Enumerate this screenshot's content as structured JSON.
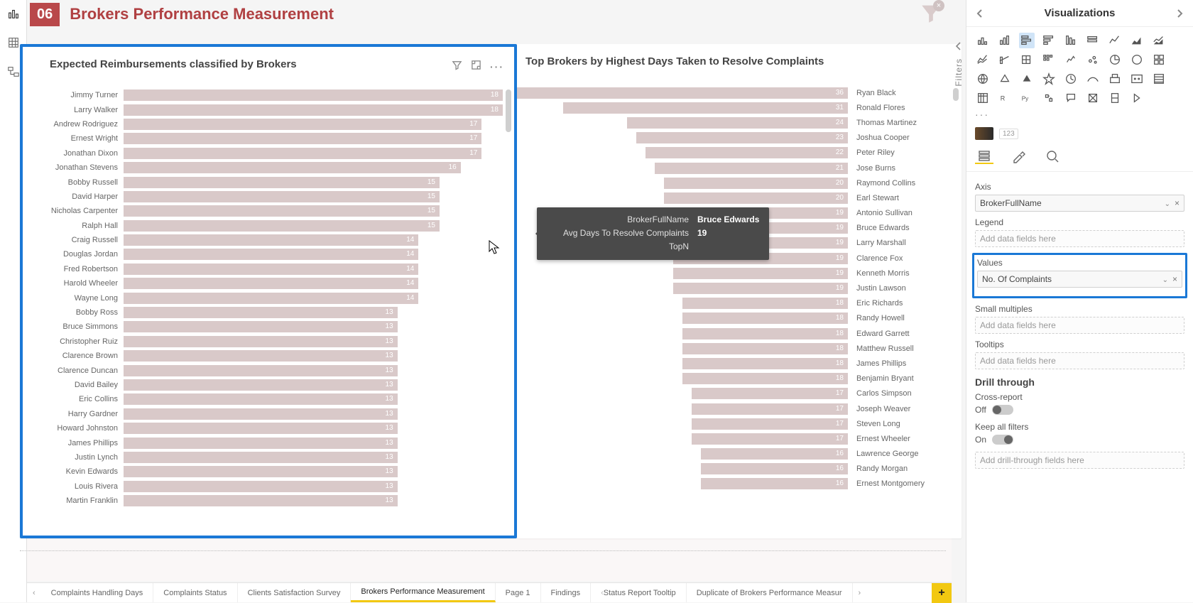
{
  "page": {
    "num": "06",
    "title": "Brokers Performance Measurement"
  },
  "leftChart": {
    "title": "Expected Reimbursements classified by Brokers",
    "maxVal": 18,
    "bars": [
      {
        "label": "Jimmy Turner",
        "val": 18
      },
      {
        "label": "Larry Walker",
        "val": 18
      },
      {
        "label": "Andrew Rodriguez",
        "val": 17
      },
      {
        "label": "Ernest Wright",
        "val": 17
      },
      {
        "label": "Jonathan Dixon",
        "val": 17
      },
      {
        "label": "Jonathan Stevens",
        "val": 16
      },
      {
        "label": "Bobby Russell",
        "val": 15
      },
      {
        "label": "David Harper",
        "val": 15
      },
      {
        "label": "Nicholas Carpenter",
        "val": 15
      },
      {
        "label": "Ralph Hall",
        "val": 15
      },
      {
        "label": "Craig Russell",
        "val": 14
      },
      {
        "label": "Douglas Jordan",
        "val": 14
      },
      {
        "label": "Fred Robertson",
        "val": 14
      },
      {
        "label": "Harold Wheeler",
        "val": 14
      },
      {
        "label": "Wayne Long",
        "val": 14
      },
      {
        "label": "Bobby Ross",
        "val": 13
      },
      {
        "label": "Bruce Simmons",
        "val": 13
      },
      {
        "label": "Christopher Ruiz",
        "val": 13
      },
      {
        "label": "Clarence Brown",
        "val": 13
      },
      {
        "label": "Clarence Duncan",
        "val": 13
      },
      {
        "label": "David Bailey",
        "val": 13
      },
      {
        "label": "Eric Collins",
        "val": 13
      },
      {
        "label": "Harry Gardner",
        "val": 13
      },
      {
        "label": "Howard Johnston",
        "val": 13
      },
      {
        "label": "James Phillips",
        "val": 13
      },
      {
        "label": "Justin Lynch",
        "val": 13
      },
      {
        "label": "Kevin Edwards",
        "val": 13
      },
      {
        "label": "Louis Rivera",
        "val": 13
      },
      {
        "label": "Martin Franklin",
        "val": 13
      }
    ]
  },
  "rightChart": {
    "title": "Top Brokers by Highest Days Taken to Resolve Complaints",
    "maxVal": 36,
    "bars": [
      {
        "label": "Ryan Black",
        "val": 36
      },
      {
        "label": "Ronald Flores",
        "val": 31
      },
      {
        "label": "Thomas Martinez",
        "val": 24
      },
      {
        "label": "Joshua Cooper",
        "val": 23
      },
      {
        "label": "Peter Riley",
        "val": 22
      },
      {
        "label": "Jose Burns",
        "val": 21
      },
      {
        "label": "Raymond Collins",
        "val": 20
      },
      {
        "label": "Earl Stewart",
        "val": 20
      },
      {
        "label": "Antonio Sullivan",
        "val": 19
      },
      {
        "label": "Bruce Edwards",
        "val": 19
      },
      {
        "label": "Larry Marshall",
        "val": 19
      },
      {
        "label": "Clarence Fox",
        "val": 19
      },
      {
        "label": "Kenneth Morris",
        "val": 19
      },
      {
        "label": "Justin Lawson",
        "val": 19
      },
      {
        "label": "Eric Richards",
        "val": 18
      },
      {
        "label": "Randy Howell",
        "val": 18
      },
      {
        "label": "Edward Garrett",
        "val": 18
      },
      {
        "label": "Matthew Russell",
        "val": 18
      },
      {
        "label": "James Phillips",
        "val": 18
      },
      {
        "label": "Benjamin Bryant",
        "val": 18
      },
      {
        "label": "Carlos Simpson",
        "val": 17
      },
      {
        "label": "Joseph Weaver",
        "val": 17
      },
      {
        "label": "Steven Long",
        "val": 17
      },
      {
        "label": "Ernest Wheeler",
        "val": 17
      },
      {
        "label": "Lawrence George",
        "val": 16
      },
      {
        "label": "Randy Morgan",
        "val": 16
      },
      {
        "label": "Ernest Montgomery",
        "val": 16
      }
    ]
  },
  "tooltip": {
    "k1": "BrokerFullName",
    "v1": "Bruce Edwards",
    "k2": "Avg Days To Resolve Complaints TopN",
    "v2": "19"
  },
  "tabs": {
    "items": [
      "Complaints Handling Days",
      "Complaints Status",
      "Clients Satisfaction Survey",
      "Brokers Performance Measurement",
      "Page 1",
      "Findings",
      "Status Report Tooltip",
      "Duplicate of Brokers Performance Measur"
    ],
    "activeIndex": 3
  },
  "pane": {
    "title": "Visualizations",
    "axisLabel": "Axis",
    "axisField": "BrokerFullName",
    "legendLabel": "Legend",
    "legendPlaceholder": "Add data fields here",
    "valuesLabel": "Values",
    "valuesField": "No. Of Complaints",
    "smLabel": "Small multiples",
    "smPlaceholder": "Add data fields here",
    "ttLabel": "Tooltips",
    "ttPlaceholder": "Add data fields here",
    "drillHeader": "Drill through",
    "crossLabel": "Cross-report",
    "crossState": "Off",
    "keepLabel": "Keep all filters",
    "keepState": "On",
    "drillPlaceholder": "Add drill-through fields here"
  },
  "filtersLabel": "Filters",
  "colors": {
    "bar": "#d9c9c9",
    "accent": "#b04042",
    "select": "#1a78d6"
  }
}
